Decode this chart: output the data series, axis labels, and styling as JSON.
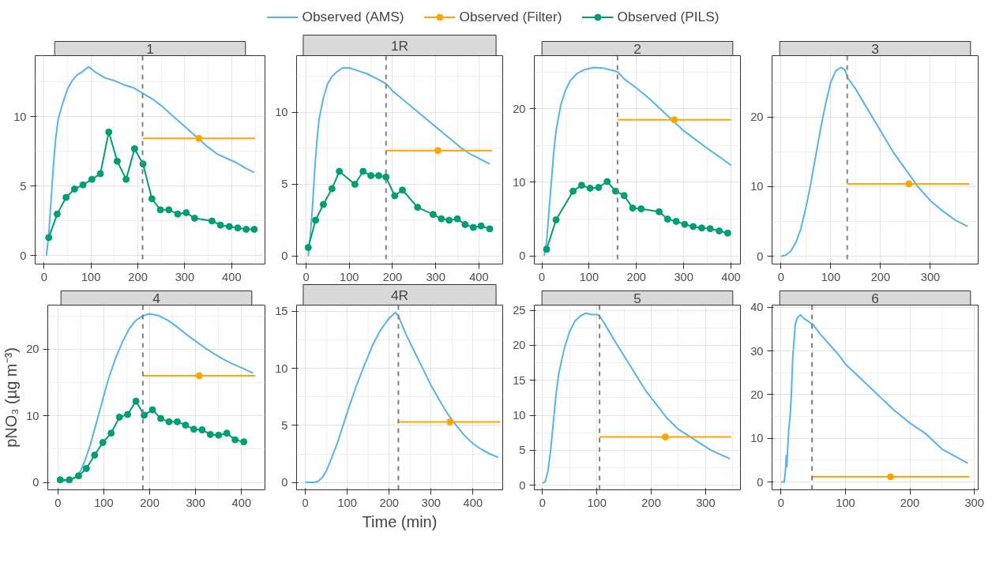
{
  "chart_data": [
    {
      "type": "line",
      "title": "1",
      "legend": "top",
      "grid": true,
      "xlim": [
        -19,
        471
      ],
      "ylim": [
        -0.6,
        14.4
      ],
      "xticks": [
        0,
        100,
        200,
        300,
        400
      ],
      "yticks": [
        0,
        5,
        10
      ],
      "ref_lines": [
        {
          "axis": "x",
          "value": 210,
          "color": "#808080",
          "line_style": "dashed"
        }
      ],
      "series": [
        {
          "name": "Observed (AMS)",
          "type": "line",
          "marker": "none",
          "color": "#56b4e9",
          "x": [
            5,
            10,
            15,
            20,
            25,
            30,
            40,
            50,
            60,
            70,
            80,
            95,
            110,
            130,
            150,
            170,
            190,
            210,
            230,
            250,
            270,
            290,
            310,
            330,
            350,
            370,
            390,
            410,
            430,
            448
          ],
          "values": [
            0,
            1.5,
            4,
            6.5,
            8.5,
            9.8,
            11,
            12,
            12.6,
            13,
            13.2,
            13.6,
            13.2,
            12.8,
            12.6,
            12.3,
            12.1,
            11.7,
            11.3,
            10.8,
            10.2,
            9.6,
            9,
            8.4,
            7.8,
            7.3,
            7,
            6.7,
            6.3,
            6
          ]
        },
        {
          "name": "Observed (Filter)",
          "type": "scatter",
          "marker": "circle",
          "color": "#ffa500",
          "x": [
            330
          ],
          "values": [
            8.45
          ],
          "xerrors": [
            [
              210,
              450
            ]
          ]
        },
        {
          "name": "Observed (PILS)",
          "type": "line",
          "marker": "circle",
          "color": "#009e73",
          "x": [
            10,
            28,
            47,
            65,
            83,
            102,
            120,
            138,
            156,
            175,
            193,
            211,
            230,
            248,
            266,
            285,
            303,
            321,
            358,
            376,
            395,
            413,
            431,
            448
          ],
          "values": [
            1.3,
            3,
            4.2,
            4.8,
            5.1,
            5.5,
            5.9,
            8.9,
            6.8,
            5.5,
            7.7,
            6.6,
            4.1,
            3.3,
            3.3,
            3,
            3.1,
            2.7,
            2.5,
            2.2,
            2.1,
            2,
            1.9,
            1.9
          ]
        }
      ]
    },
    {
      "type": "line",
      "title": "1R",
      "grid": true,
      "xlim": [
        -22,
        455
      ],
      "ylim": [
        -0.55,
        13.95
      ],
      "xticks": [
        0,
        100,
        200,
        300,
        400
      ],
      "yticks": [
        0,
        5,
        10
      ],
      "ref_lines": [
        {
          "axis": "x",
          "value": 185,
          "color": "#808080",
          "line_style": "dashed"
        }
      ],
      "series": [
        {
          "type": "line",
          "marker": "none",
          "color": "#56b4e9",
          "x": [
            5,
            10,
            15,
            20,
            25,
            30,
            40,
            50,
            60,
            70,
            85,
            100,
            120,
            140,
            160,
            185,
            200,
            220,
            240,
            260,
            280,
            300,
            320,
            340,
            360,
            380,
            400,
            425
          ],
          "values": [
            0,
            1.5,
            3.5,
            6,
            8,
            9.5,
            11,
            12,
            12.5,
            12.8,
            13.1,
            13.1,
            12.9,
            12.7,
            12.4,
            12,
            11.5,
            11,
            10.5,
            10,
            9.5,
            9,
            8.5,
            8,
            7.5,
            7.1,
            6.8,
            6.4
          ]
        },
        {
          "type": "scatter",
          "marker": "circle",
          "color": "#ffa500",
          "x": [
            305
          ],
          "values": [
            7.35
          ],
          "xerrors": [
            [
              185,
              430
            ]
          ]
        },
        {
          "type": "line",
          "marker": "circle",
          "color": "#009e73",
          "x": [
            5,
            22,
            40,
            60,
            77,
            113,
            132,
            150,
            168,
            185,
            205,
            223,
            258,
            294,
            313,
            331,
            350,
            368,
            387,
            405,
            425
          ],
          "values": [
            0.6,
            2.5,
            3.6,
            4.7,
            5.9,
            5,
            5.9,
            5.6,
            5.6,
            5.5,
            4.2,
            4.6,
            3.4,
            2.9,
            2.6,
            2.5,
            2.6,
            2.2,
            2,
            2.1,
            1.9
          ]
        }
      ]
    },
    {
      "type": "line",
      "title": "2",
      "grid": true,
      "xlim": [
        -16,
        420
      ],
      "ylim": [
        -1.1,
        27.2
      ],
      "xticks": [
        0,
        100,
        200,
        300,
        400
      ],
      "yticks": [
        0,
        10,
        20
      ],
      "ref_lines": [
        {
          "axis": "x",
          "value": 160,
          "color": "#808080",
          "line_style": "dashed"
        }
      ],
      "series": [
        {
          "type": "line",
          "marker": "none",
          "color": "#56b4e9",
          "x": [
            5,
            10,
            15,
            20,
            25,
            30,
            40,
            50,
            60,
            75,
            90,
            110,
            130,
            150,
            160,
            175,
            200,
            225,
            250,
            275,
            300,
            325,
            350,
            375,
            400
          ],
          "values": [
            0,
            2,
            6,
            10,
            14,
            17,
            20.5,
            22.5,
            23.8,
            24.8,
            25.3,
            25.6,
            25.5,
            25.2,
            25,
            24,
            22.8,
            21.5,
            20,
            18.5,
            17,
            15.8,
            14.6,
            13.5,
            12.3
          ]
        },
        {
          "type": "scatter",
          "marker": "circle",
          "color": "#ffa500",
          "x": [
            280
          ],
          "values": [
            18.5
          ],
          "xerrors": [
            [
              160,
              400
            ]
          ]
        },
        {
          "type": "line",
          "marker": "circle",
          "color": "#009e73",
          "x": [
            10,
            30,
            66,
            84,
            102,
            120,
            138,
            156,
            174,
            192,
            210,
            248,
            266,
            284,
            302,
            320,
            338,
            356,
            375,
            393
          ],
          "values": [
            0.9,
            4.9,
            8.8,
            9.6,
            9.2,
            9.3,
            10.1,
            8.8,
            8.2,
            6.5,
            6.4,
            6,
            5,
            4.7,
            4.3,
            4,
            3.8,
            3.7,
            3.4,
            3.1
          ]
        }
      ]
    },
    {
      "type": "line",
      "title": "3",
      "grid": true,
      "xlim": [
        -18,
        396
      ],
      "ylim": [
        -1.1,
        28.8
      ],
      "xticks": [
        0,
        100,
        200,
        300
      ],
      "yticks": [
        0,
        10,
        20
      ],
      "ref_lines": [
        {
          "axis": "x",
          "value": 133,
          "color": "#808080",
          "line_style": "dashed"
        }
      ],
      "series": [
        {
          "type": "line",
          "marker": "none",
          "color": "#56b4e9",
          "x": [
            0,
            10,
            20,
            30,
            40,
            50,
            60,
            70,
            80,
            90,
            100,
            110,
            120,
            128,
            135,
            150,
            175,
            200,
            225,
            250,
            275,
            300,
            325,
            350,
            375
          ],
          "values": [
            0,
            0.2,
            0.8,
            2,
            4,
            7,
            10.5,
            14.5,
            18.5,
            22,
            25,
            26.6,
            27.1,
            26.8,
            25.5,
            24,
            21,
            18,
            15,
            12.5,
            10,
            8,
            6.5,
            5.2,
            4.3
          ]
        },
        {
          "type": "scatter",
          "marker": "circle",
          "color": "#ffa500",
          "x": [
            257
          ],
          "values": [
            10.4
          ],
          "xerrors": [
            [
              133,
              378
            ]
          ]
        }
      ]
    },
    {
      "type": "line",
      "title": "4",
      "ylabel": "pNO₃ (µg m⁻³)",
      "grid": true,
      "xlim": [
        -22,
        451
      ],
      "ylim": [
        -1.1,
        26.6
      ],
      "xticks": [
        0,
        100,
        200,
        300,
        400
      ],
      "yticks": [
        0,
        10,
        20
      ],
      "ref_lines": [
        {
          "axis": "x",
          "value": 185,
          "color": "#808080",
          "line_style": "dashed"
        }
      ],
      "series": [
        {
          "type": "line",
          "marker": "none",
          "color": "#56b4e9",
          "x": [
            5,
            25,
            40,
            50,
            60,
            70,
            80,
            90,
            100,
            110,
            125,
            140,
            155,
            170,
            185,
            200,
            220,
            240,
            260,
            280,
            300,
            320,
            340,
            360,
            380,
            400,
            425
          ],
          "values": [
            0.2,
            0.3,
            0.8,
            1.8,
            3.5,
            5.5,
            8,
            10.5,
            13,
            15.5,
            18.5,
            21,
            23,
            24.3,
            25,
            25.3,
            25,
            24.3,
            23.3,
            22.2,
            21.2,
            20.2,
            19.3,
            18.5,
            17.8,
            17.2,
            16.4
          ]
        },
        {
          "type": "scatter",
          "marker": "circle",
          "color": "#ffa500",
          "x": [
            308
          ],
          "values": [
            16
          ],
          "xerrors": [
            [
              185,
              430
            ]
          ]
        },
        {
          "type": "line",
          "marker": "circle",
          "color": "#009e73",
          "x": [
            5,
            25,
            45,
            62,
            80,
            98,
            116,
            134,
            152,
            170,
            188,
            206,
            224,
            242,
            260,
            278,
            296,
            314,
            332,
            350,
            368,
            386,
            405
          ],
          "values": [
            0.4,
            0.4,
            1,
            2.1,
            4.1,
            6,
            7.4,
            9.8,
            10.2,
            12.2,
            10.1,
            10.9,
            9.6,
            9.1,
            9.1,
            8.6,
            8,
            7.9,
            7.2,
            7.1,
            7.4,
            6.4,
            6.1
          ]
        }
      ]
    },
    {
      "type": "line",
      "title": "4R",
      "xlabel": "Time (min)",
      "grid": true,
      "xlim": [
        -21,
        471
      ],
      "ylim": [
        -0.65,
        15.55
      ],
      "xticks": [
        0,
        100,
        200,
        300,
        400
      ],
      "yticks": [
        0,
        5,
        10,
        15
      ],
      "ref_lines": [
        {
          "axis": "x",
          "value": 222,
          "color": "#808080",
          "line_style": "dashed"
        }
      ],
      "series": [
        {
          "type": "line",
          "marker": "none",
          "color": "#56b4e9",
          "x": [
            0,
            20,
            30,
            40,
            50,
            60,
            75,
            90,
            105,
            120,
            140,
            160,
            180,
            200,
            215,
            222,
            240,
            260,
            280,
            300,
            320,
            340,
            360,
            380,
            400,
            420,
            440,
            460
          ],
          "values": [
            0,
            0,
            0.1,
            0.4,
            1,
            1.9,
            3.3,
            5,
            6.7,
            8.3,
            10.2,
            12,
            13.4,
            14.4,
            14.9,
            14.6,
            13,
            11.5,
            10,
            8.5,
            7.2,
            6,
            5,
            4.1,
            3.4,
            2.9,
            2.5,
            2.2
          ]
        },
        {
          "type": "scatter",
          "marker": "circle",
          "color": "#ffa500",
          "x": [
            345
          ],
          "values": [
            5.3
          ],
          "xerrors": [
            [
              222,
              465
            ]
          ]
        }
      ]
    },
    {
      "type": "line",
      "title": "5",
      "grid": true,
      "xlim": [
        -15,
        364
      ],
      "ylim": [
        -0.65,
        25.75
      ],
      "xticks": [
        0,
        100,
        200,
        300
      ],
      "yticks": [
        0,
        5,
        10,
        15,
        20,
        25
      ],
      "ref_lines": [
        {
          "axis": "x",
          "value": 105,
          "color": "#808080",
          "line_style": "dashed"
        }
      ],
      "series": [
        {
          "type": "line",
          "marker": "none",
          "color": "#56b4e9",
          "x": [
            0,
            5,
            10,
            15,
            20,
            25,
            30,
            40,
            50,
            60,
            70,
            80,
            90,
            100,
            105,
            115,
            130,
            150,
            170,
            190,
            210,
            230,
            250,
            270,
            290,
            310,
            330,
            345
          ],
          "values": [
            0.3,
            0.5,
            2,
            5,
            9,
            13,
            16,
            19.5,
            22,
            23.5,
            24.2,
            24.6,
            24.4,
            24.4,
            24.2,
            23,
            21,
            18.5,
            16,
            13.5,
            11.5,
            9.5,
            8,
            7,
            6,
            5,
            4.3,
            3.8
          ]
        },
        {
          "type": "scatter",
          "marker": "circle",
          "color": "#ffa500",
          "x": [
            226
          ],
          "values": [
            6.9
          ],
          "xerrors": [
            [
              105,
              347
            ]
          ]
        }
      ]
    },
    {
      "type": "line",
      "title": "6",
      "grid": true,
      "xlim": [
        -14,
        306
      ],
      "ylim": [
        -1.8,
        40.5
      ],
      "xticks": [
        0,
        100,
        200,
        300
      ],
      "yticks": [
        0,
        10,
        20,
        30,
        40
      ],
      "ref_lines": [
        {
          "axis": "x",
          "value": 48,
          "color": "#808080",
          "line_style": "dashed"
        }
      ],
      "series": [
        {
          "type": "line",
          "marker": "none",
          "color": "#56b4e9",
          "x": [
            0,
            5,
            7,
            8,
            9,
            10,
            12,
            14,
            16,
            18,
            20,
            22,
            25,
            30,
            35,
            40,
            50,
            60,
            75,
            90,
            100,
            125,
            150,
            175,
            200,
            225,
            250,
            275,
            290
          ],
          "values": [
            0,
            0,
            3,
            6,
            3.5,
            7,
            12,
            15,
            20,
            28,
            32,
            36,
            37.5,
            38.3,
            37.5,
            37,
            36,
            34,
            31.5,
            29,
            27,
            23.5,
            20,
            16.5,
            13.5,
            11,
            7.5,
            5.5,
            4.3
          ]
        },
        {
          "type": "scatter",
          "marker": "circle",
          "color": "#ffa500",
          "x": [
            170
          ],
          "values": [
            1.2
          ],
          "xerrors": [
            [
              48,
              292
            ]
          ]
        }
      ]
    }
  ]
}
